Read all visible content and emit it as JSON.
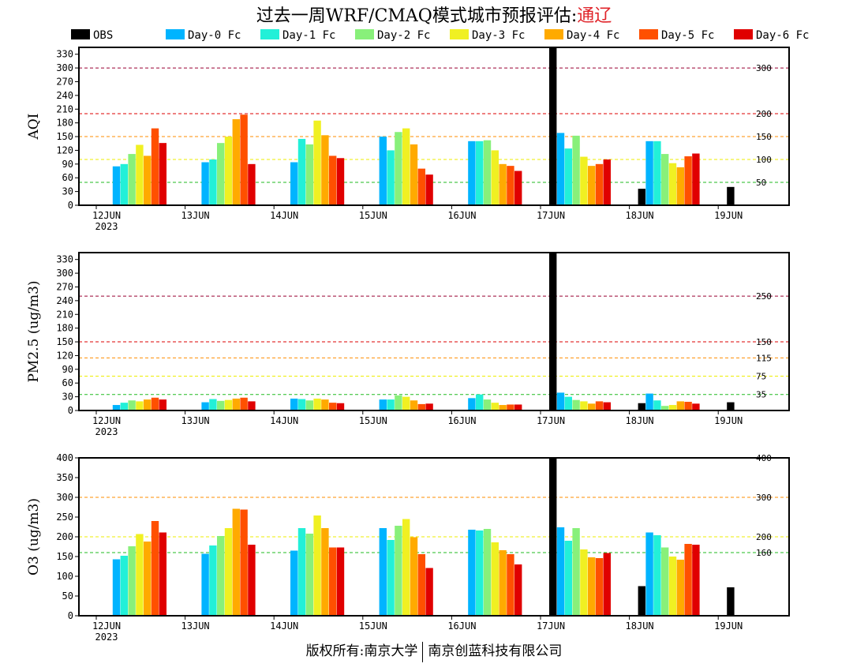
{
  "title": {
    "main": "过去一周WRF/CMAQ模式城市预报评估:",
    "city": "通辽"
  },
  "footer": {
    "left": "版权所有:南京大学",
    "right": "南京创蓝科技有限公司"
  },
  "colors": {
    "OBS": "#000000",
    "Day-0 Fc": "#00b4ff",
    "Day-1 Fc": "#22f0d8",
    "Day-2 Fc": "#88f07a",
    "Day-3 Fc": "#f0f022",
    "Day-4 Fc": "#ffaa00",
    "Day-5 Fc": "#ff5000",
    "Day-6 Fc": "#e00000"
  },
  "chart_data": [
    {
      "type": "bar",
      "ylabel": "AQI",
      "ylim": [
        0,
        345
      ],
      "yticks": [
        0,
        30,
        60,
        90,
        120,
        150,
        180,
        210,
        240,
        270,
        300,
        330
      ],
      "categories": [
        "12JUN",
        "13JUN",
        "14JUN",
        "15JUN",
        "16JUN",
        "17JUN",
        "18JUN",
        "19JUN"
      ],
      "year_label": "2023",
      "thresholds": [
        {
          "value": 50,
          "label": "50",
          "color": "#22bb22"
        },
        {
          "value": 100,
          "label": "100",
          "color": "#eeee00"
        },
        {
          "value": 150,
          "label": "150",
          "color": "#ff8c00"
        },
        {
          "value": 200,
          "label": "200",
          "color": "#dd0000"
        },
        {
          "value": 300,
          "label": "300",
          "color": "#990033"
        }
      ],
      "series": [
        {
          "name": "OBS",
          "values": [
            null,
            null,
            null,
            null,
            null,
            345,
            36,
            40
          ]
        },
        {
          "name": "Day-0 Fc",
          "values": [
            85,
            94,
            94,
            150,
            140,
            158,
            140,
            null
          ]
        },
        {
          "name": "Day-1 Fc",
          "values": [
            90,
            100,
            145,
            120,
            140,
            124,
            140,
            null
          ]
        },
        {
          "name": "Day-2 Fc",
          "values": [
            112,
            136,
            133,
            160,
            142,
            152,
            112,
            null
          ]
        },
        {
          "name": "Day-3 Fc",
          "values": [
            132,
            150,
            185,
            168,
            120,
            106,
            92,
            null
          ]
        },
        {
          "name": "Day-4 Fc",
          "values": [
            108,
            188,
            153,
            133,
            90,
            86,
            83,
            null
          ]
        },
        {
          "name": "Day-5 Fc",
          "values": [
            168,
            198,
            108,
            80,
            86,
            90,
            107,
            null
          ]
        },
        {
          "name": "Day-6 Fc",
          "values": [
            136,
            90,
            103,
            67,
            75,
            100,
            113,
            null
          ]
        }
      ]
    },
    {
      "type": "bar",
      "ylabel": "PM2.5 (ug/m3)",
      "ylim": [
        0,
        345
      ],
      "yticks": [
        0,
        30,
        60,
        90,
        120,
        150,
        180,
        210,
        240,
        270,
        300,
        330
      ],
      "categories": [
        "12JUN",
        "13JUN",
        "14JUN",
        "15JUN",
        "16JUN",
        "17JUN",
        "18JUN",
        "19JUN"
      ],
      "year_label": "2023",
      "thresholds": [
        {
          "value": 35,
          "label": "35",
          "color": "#22bb22"
        },
        {
          "value": 75,
          "label": "75",
          "color": "#eeee00"
        },
        {
          "value": 115,
          "label": "115",
          "color": "#ff8c00"
        },
        {
          "value": 150,
          "label": "150",
          "color": "#dd0000"
        },
        {
          "value": 250,
          "label": "250",
          "color": "#990033"
        }
      ],
      "series": [
        {
          "name": "OBS",
          "values": [
            null,
            null,
            null,
            null,
            null,
            345,
            16,
            18
          ]
        },
        {
          "name": "Day-0 Fc",
          "values": [
            12,
            18,
            26,
            24,
            27,
            39,
            37,
            null
          ]
        },
        {
          "name": "Day-1 Fc",
          "values": [
            17,
            25,
            25,
            24,
            35,
            30,
            22,
            null
          ]
        },
        {
          "name": "Day-2 Fc",
          "values": [
            22,
            21,
            22,
            33,
            24,
            23,
            10,
            null
          ]
        },
        {
          "name": "Day-3 Fc",
          "values": [
            20,
            23,
            26,
            30,
            17,
            20,
            12,
            null
          ]
        },
        {
          "name": "Day-4 Fc",
          "values": [
            24,
            26,
            24,
            22,
            12,
            15,
            20,
            null
          ]
        },
        {
          "name": "Day-5 Fc",
          "values": [
            28,
            28,
            17,
            14,
            13,
            20,
            19,
            null
          ]
        },
        {
          "name": "Day-6 Fc",
          "values": [
            24,
            20,
            16,
            15,
            13,
            18,
            15,
            null
          ]
        }
      ]
    },
    {
      "type": "bar",
      "ylabel": "O3 (ug/m3)",
      "ylim": [
        0,
        400
      ],
      "yticks": [
        0,
        50,
        100,
        150,
        200,
        250,
        300,
        350,
        400
      ],
      "categories": [
        "12JUN",
        "13JUN",
        "14JUN",
        "15JUN",
        "16JUN",
        "17JUN",
        "18JUN",
        "19JUN"
      ],
      "year_label": "2023",
      "thresholds": [
        {
          "value": 160,
          "label": "160",
          "color": "#22bb22"
        },
        {
          "value": 200,
          "label": "200",
          "color": "#eeee00"
        },
        {
          "value": 300,
          "label": "300",
          "color": "#ff8c00"
        },
        {
          "value": 400,
          "label": "400",
          "color": "#dd0000"
        }
      ],
      "series": [
        {
          "name": "OBS",
          "values": [
            null,
            null,
            null,
            null,
            null,
            400,
            75,
            72
          ]
        },
        {
          "name": "Day-0 Fc",
          "values": [
            143,
            157,
            165,
            222,
            218,
            224,
            211,
            null
          ]
        },
        {
          "name": "Day-1 Fc",
          "values": [
            152,
            178,
            222,
            192,
            216,
            190,
            204,
            null
          ]
        },
        {
          "name": "Day-2 Fc",
          "values": [
            176,
            202,
            208,
            228,
            220,
            222,
            173,
            null
          ]
        },
        {
          "name": "Day-3 Fc",
          "values": [
            207,
            222,
            254,
            245,
            186,
            168,
            150,
            null
          ]
        },
        {
          "name": "Day-4 Fc",
          "values": [
            188,
            271,
            222,
            199,
            166,
            148,
            142,
            null
          ]
        },
        {
          "name": "Day-5 Fc",
          "values": [
            240,
            269,
            173,
            156,
            156,
            146,
            182,
            null
          ]
        },
        {
          "name": "Day-6 Fc",
          "values": [
            211,
            180,
            173,
            121,
            130,
            159,
            180,
            null
          ]
        }
      ]
    }
  ]
}
